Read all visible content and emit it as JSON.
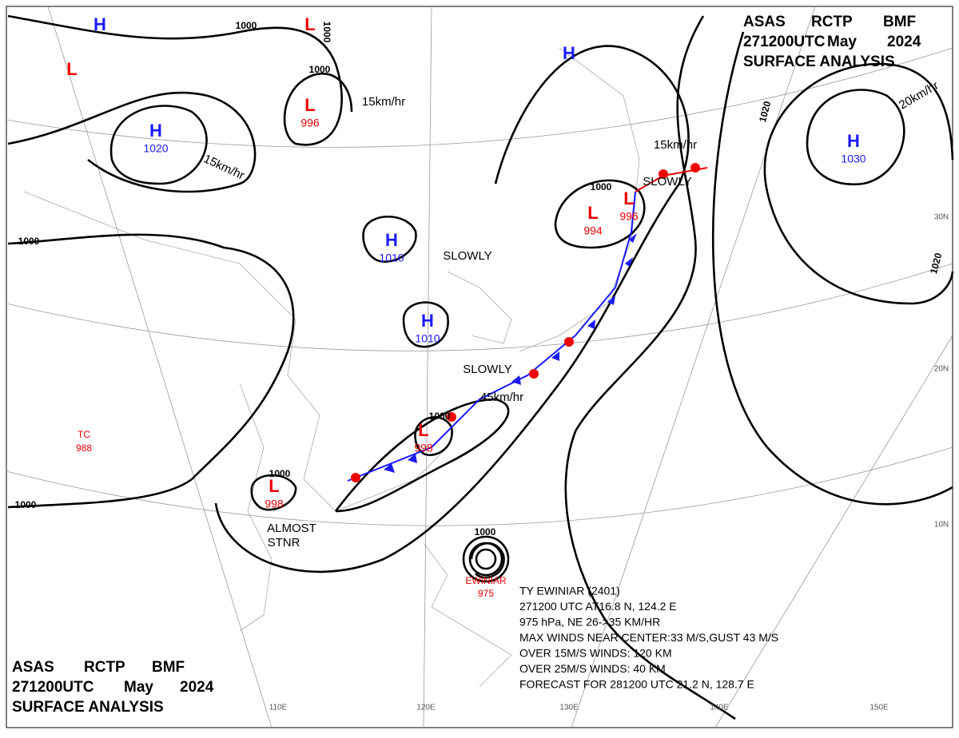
{
  "header_top": {
    "lines": [
      [
        "ASAS",
        "RCTP",
        "BMF"
      ],
      [
        "271200UTC",
        "May",
        "2024"
      ],
      [
        "SURFACE ANALYSIS"
      ]
    ]
  },
  "header_bottom": {
    "lines": [
      [
        "ASAS",
        "RCTP",
        "BMF"
      ],
      [
        "271200UTC",
        "May",
        "2024"
      ],
      [
        "SURFACE ANALYSIS"
      ]
    ]
  },
  "centers": [
    {
      "type": "H",
      "value": 1020
    },
    {
      "type": "L"
    },
    {
      "type": "H"
    },
    {
      "type": "L"
    },
    {
      "type": "L",
      "value": 996
    },
    {
      "type": "H",
      "value": 1010
    },
    {
      "type": "H",
      "value": 1010
    },
    {
      "type": "L",
      "value": 994
    },
    {
      "type": "L",
      "value": 996
    },
    {
      "type": "H",
      "value": 1030
    },
    {
      "type": "H"
    },
    {
      "type": "L",
      "value": 998
    },
    {
      "type": "L",
      "value": 998
    }
  ],
  "isobar_labels": [
    1000,
    1000,
    1000,
    1000,
    1000,
    1000,
    1000,
    1000,
    1000,
    1020,
    1020
  ],
  "motion_labels": [
    "15km/hr",
    "15km/hr",
    "SLOWLY",
    "SLOWLY",
    "45km/hr",
    "15km/hr",
    "SLOWLY",
    "20km/hr",
    "ALMOST",
    "STNR"
  ],
  "tropical": {
    "tc_label": "TC",
    "tc_pressure": 988,
    "typhoon_name": "EWINIAR",
    "typhoon_pressure": 975
  },
  "typhoon_info": [
    "TY EWINIAR (2401)",
    "271200 UTC AT16.8 N, 124.2 E",
    "975 hPa, NE 26->35 KM/HR",
    "MAX WINDS NEAR CENTER:33 M/S,GUST 43 M/S",
    "OVER 15M/S WINDS: 120 KM",
    "OVER 25M/S WINDS: 40 KM",
    "FORECAST FOR 281200 UTC 21.2 N, 128.7 E"
  ],
  "grid_labels": {
    "lat": [
      "30N",
      "20N",
      "10N"
    ],
    "lon": [
      "110E",
      "120E",
      "130E",
      "140E",
      "150E"
    ]
  }
}
